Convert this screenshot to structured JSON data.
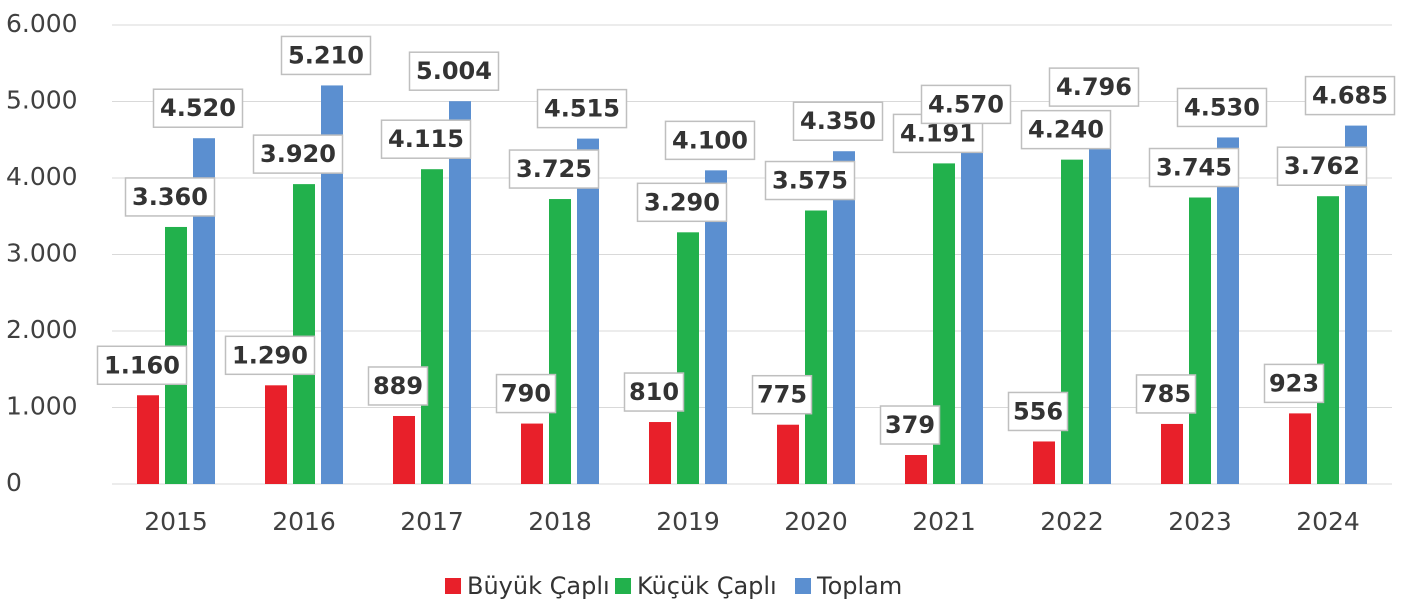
{
  "chart_data": {
    "type": "bar",
    "categories": [
      "2015",
      "2016",
      "2017",
      "2018",
      "2019",
      "2020",
      "2021",
      "2022",
      "2023",
      "2024"
    ],
    "series": [
      {
        "name": "Büyük Çaplı",
        "color": "#e8202a",
        "values": [
          1160,
          1290,
          889,
          790,
          810,
          775,
          379,
          556,
          785,
          923
        ],
        "value_labels": [
          "1.160",
          "1.290",
          "889",
          "790",
          "810",
          "775",
          "379",
          "556",
          "785",
          "923"
        ]
      },
      {
        "name": "Küçük Çaplı",
        "color": "#22b14c",
        "values": [
          3360,
          3920,
          4115,
          3725,
          3290,
          3575,
          4191,
          4240,
          3745,
          3762
        ],
        "value_labels": [
          "3.360",
          "3.920",
          "4.115",
          "3.725",
          "3.290",
          "3.575",
          "4.191",
          "4.240",
          "3.745",
          "3.762"
        ]
      },
      {
        "name": "Toplam",
        "color": "#5b8fd0",
        "values": [
          4520,
          5210,
          5004,
          4515,
          4100,
          4350,
          4570,
          4796,
          4530,
          4685
        ],
        "value_labels": [
          "4.520",
          "5.210",
          "5.004",
          "4.515",
          "4.100",
          "4.350",
          "4.570",
          "4.796",
          "4.530",
          "4.685"
        ]
      }
    ],
    "ylim": [
      0,
      6000
    ],
    "yticks": [
      0,
      {
        "value": 1000,
        "label": "1.000"
      },
      {
        "value": 2000,
        "label": "2.000"
      },
      {
        "value": 3000,
        "label": "3.000"
      },
      {
        "value": 4000,
        "label": "4.000"
      },
      {
        "value": 5000,
        "label": "5.000"
      },
      {
        "value": 6000,
        "label": "6.000"
      }
    ],
    "grid": true,
    "legend": "bottom"
  }
}
